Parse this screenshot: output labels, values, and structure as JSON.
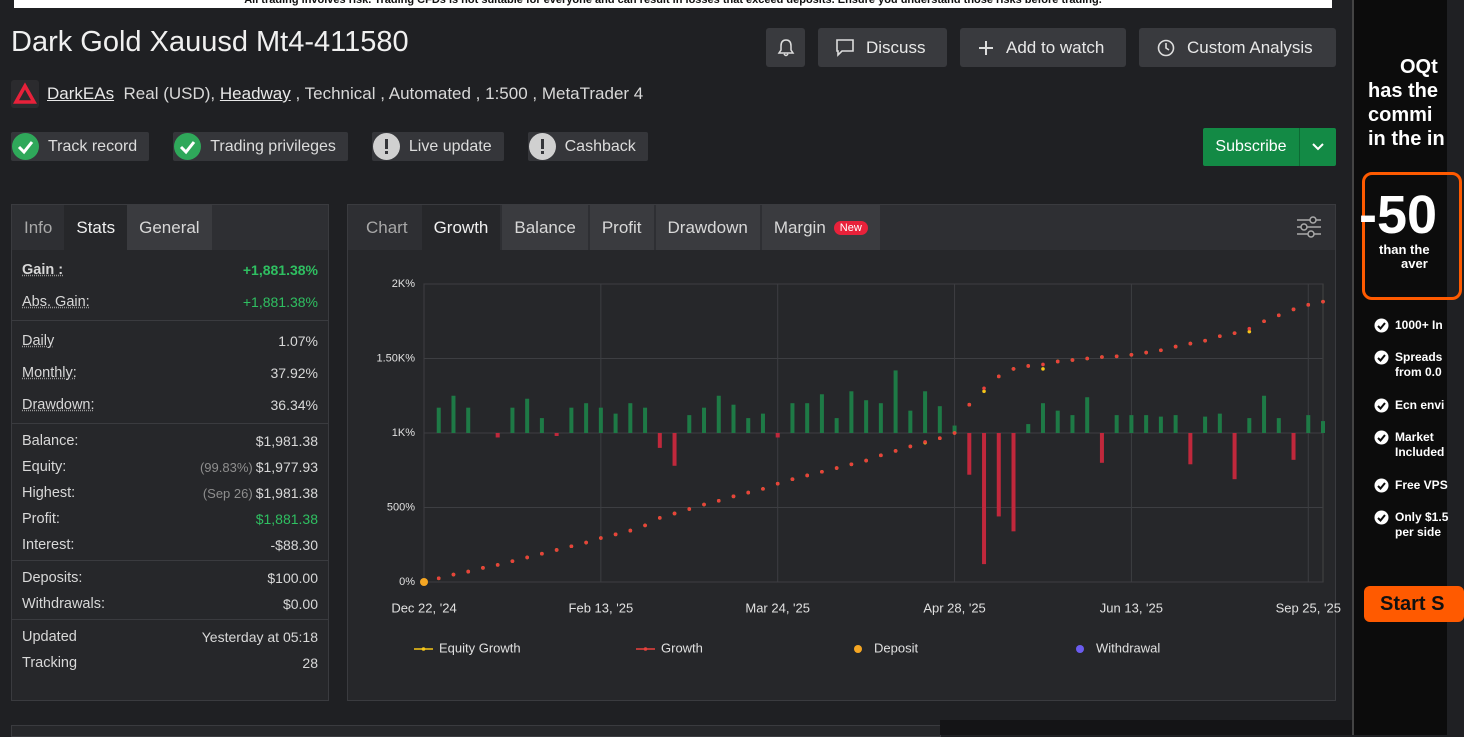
{
  "banner": "All trading involves risk. Trading CFDs is not suitable for everyone and can result in losses that exceed deposits. Ensure you understand those risks before trading.",
  "header": {
    "title": "Dark Gold Xauusd Mt4-411580",
    "buttons": [
      "Discuss",
      "Add to watch",
      "Custom Analysis"
    ],
    "author": "DarkEAs",
    "details_1": "Real (USD), ",
    "broker": "Headway",
    "details_2": " , Technical , Automated , 1:500 , MetaTrader 4"
  },
  "badges": [
    {
      "label": "Track record",
      "ok": true
    },
    {
      "label": "Trading privileges",
      "ok": true
    },
    {
      "label": "Live update",
      "ok": false
    },
    {
      "label": "Cashback",
      "ok": false
    }
  ],
  "subscribe": "Subscribe",
  "stats": {
    "tabs": [
      "Info",
      "Stats",
      "General"
    ],
    "active_tab": 1,
    "groups": [
      [
        {
          "label": "Gain :",
          "value": "+1,881.38%",
          "green": true,
          "bold": true
        },
        {
          "label": "Abs. Gain:",
          "value": "+1,881.38%",
          "green": true
        }
      ],
      [
        {
          "label": "Daily",
          "value": "1.07%"
        },
        {
          "label": "Monthly:",
          "value": "37.92%"
        },
        {
          "label": "Drawdown:",
          "value": "36.34%"
        }
      ],
      [
        {
          "label": "Balance:",
          "value": "$1,981.38"
        },
        {
          "label": "Equity:",
          "note": "(99.83%)",
          "value": "$1,977.93"
        },
        {
          "label": "Highest:",
          "note": "(Sep 26)",
          "value": "$1,981.38"
        },
        {
          "label": "Profit:",
          "value": "$1,881.38",
          "green": true
        },
        {
          "label": "Interest:",
          "value": "-$88.30"
        }
      ],
      [
        {
          "label": "Deposits:",
          "value": "$100.00"
        },
        {
          "label": "Withdrawals:",
          "value": "$0.00"
        }
      ],
      [
        {
          "label": "Updated",
          "value": "Yesterday at 05:18"
        },
        {
          "label": "Tracking",
          "value": "28"
        }
      ]
    ]
  },
  "chart_tabs": {
    "tabs": [
      "Chart",
      "Growth",
      "Balance",
      "Profit",
      "Drawdown",
      "Margin"
    ],
    "active_tab": 1,
    "new_badge": "New"
  },
  "chart_data": {
    "type": "line",
    "grid": true,
    "xlim": [
      0,
      61
    ],
    "xticks": [
      {
        "value": 0,
        "label": "Dec 22, '24"
      },
      {
        "value": 12,
        "label": "Feb 13, '25"
      },
      {
        "value": 24,
        "label": "Mar 24, '25"
      },
      {
        "value": 36,
        "label": "Apr 28, '25"
      },
      {
        "value": 48,
        "label": "Jun 13, '25"
      },
      {
        "value": 60,
        "label": "Sep 25, '25"
      }
    ],
    "ylim": [
      0,
      2000
    ],
    "yticks": [
      {
        "value": 0,
        "label": "0%"
      },
      {
        "value": 500,
        "label": "500%"
      },
      {
        "value": 1000,
        "label": "1K%"
      },
      {
        "value": 1500,
        "label": "1.50K%"
      },
      {
        "value": 2000,
        "label": "2K%"
      }
    ],
    "y2lim": [
      -1000,
      1000
    ],
    "series": [
      {
        "type": "bar",
        "axis": "y2",
        "color": "#1e7a46",
        "negative_color": "#c0283c",
        "values": [
          0,
          170,
          250,
          170,
          0,
          -30,
          170,
          230,
          100,
          -20,
          170,
          200,
          170,
          130,
          200,
          170,
          -100,
          -220,
          120,
          170,
          250,
          190,
          100,
          130,
          -30,
          200,
          200,
          260,
          100,
          280,
          220,
          200,
          420,
          150,
          280,
          180,
          50,
          -280,
          -880,
          -560,
          -660,
          60,
          200,
          150,
          120,
          240,
          -200,
          120,
          120,
          120,
          110,
          120,
          -210,
          110,
          130,
          -310,
          100,
          250,
          100,
          -180,
          120,
          80
        ]
      },
      {
        "name": "Equity Growth",
        "type": "line",
        "color": "#f5c518",
        "values": [
          0,
          25,
          50,
          70,
          95,
          115,
          140,
          165,
          190,
          215,
          240,
          265,
          295,
          320,
          345,
          380,
          430,
          460,
          490,
          520,
          545,
          575,
          600,
          625,
          660,
          690,
          715,
          740,
          765,
          790,
          815,
          850,
          880,
          910,
          935,
          965,
          1000,
          1190,
          1280,
          1380,
          1430,
          1450,
          1430,
          1480,
          1490,
          1500,
          1510,
          1515,
          1525,
          1540,
          1555,
          1580,
          1600,
          1620,
          1650,
          1670,
          1680,
          1750,
          1790,
          1830,
          1860,
          1881.38
        ]
      },
      {
        "name": "Growth",
        "type": "line",
        "color": "#e8413c",
        "values": [
          0,
          25,
          50,
          70,
          95,
          115,
          140,
          165,
          190,
          215,
          240,
          265,
          295,
          320,
          345,
          380,
          430,
          460,
          490,
          520,
          545,
          575,
          600,
          625,
          660,
          690,
          715,
          740,
          765,
          790,
          815,
          850,
          880,
          910,
          940,
          965,
          1000,
          1190,
          1300,
          1380,
          1430,
          1450,
          1460,
          1480,
          1490,
          1500,
          1510,
          1515,
          1525,
          1540,
          1555,
          1580,
          1600,
          1620,
          1650,
          1670,
          1700,
          1750,
          1790,
          1830,
          1860,
          1881.38
        ]
      },
      {
        "name": "Deposit",
        "type": "scatter",
        "color": "#f5a623",
        "x": [
          0
        ],
        "values": [
          0
        ]
      },
      {
        "name": "Withdrawal",
        "type": "scatter",
        "color": "#6b5cf0",
        "x": [],
        "values": []
      }
    ]
  },
  "ad": {
    "headline": [
      "OQt",
      "has the",
      "commi",
      "in the in"
    ],
    "big": "-50",
    "sub": [
      "than the",
      "aver"
    ],
    "features": [
      [
        "1000+ In"
      ],
      [
        "Spreads",
        "from 0.0"
      ],
      [
        "Ecn envi"
      ],
      [
        "Market",
        "Included"
      ],
      [
        "Free VPS"
      ],
      [
        "Only $1.5",
        "per side"
      ]
    ],
    "cta": "Start S"
  }
}
